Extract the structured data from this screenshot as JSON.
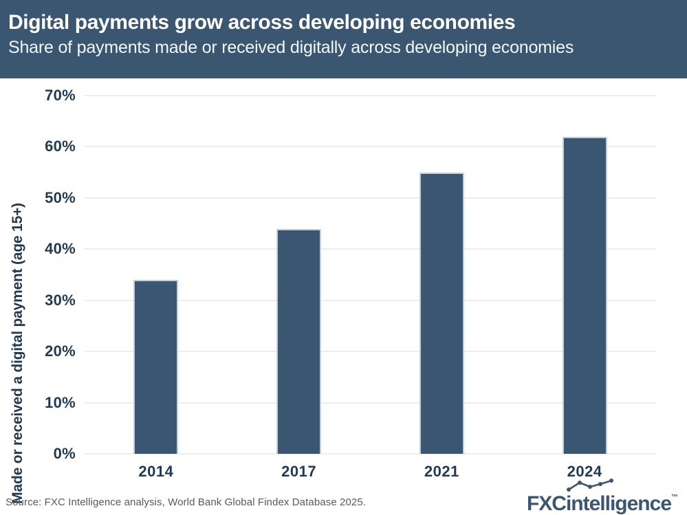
{
  "header": {
    "title": "Digital payments grow across developing economies",
    "subtitle": "Share of payments made or received digitally across developing economies"
  },
  "chart_data": {
    "type": "bar",
    "categories": [
      "2014",
      "2017",
      "2021",
      "2024"
    ],
    "values": [
      34,
      44,
      55,
      62
    ],
    "unit": "%",
    "title": "Digital payments grow across developing economies",
    "subtitle": "Share of payments made or received digitally across developing economies",
    "xlabel": "",
    "ylabel": "Made or received a digital payment (age 15+)",
    "ylim": [
      0,
      70
    ],
    "ytick_step": 10,
    "yticks": [
      "70%",
      "60%",
      "50%",
      "40%",
      "30%",
      "20%",
      "10%",
      "0%"
    ],
    "grid": true,
    "legend": "none",
    "bar_color": "#3a5672",
    "bar_edge_color": "#c3cfda"
  },
  "footer": {
    "source": "Source: FXC Intelligence analysis, World Bank Global Findex Database 2025.",
    "logo": {
      "bold": "FXC",
      "rest": "intelligence",
      "tm": "™"
    }
  },
  "colors": {
    "header_background": "#3a5670",
    "axis_text": "#1f3a52",
    "gridline": "#ededed",
    "source_text": "#595959",
    "logo": "#3a5670",
    "background": "#ffffff"
  }
}
